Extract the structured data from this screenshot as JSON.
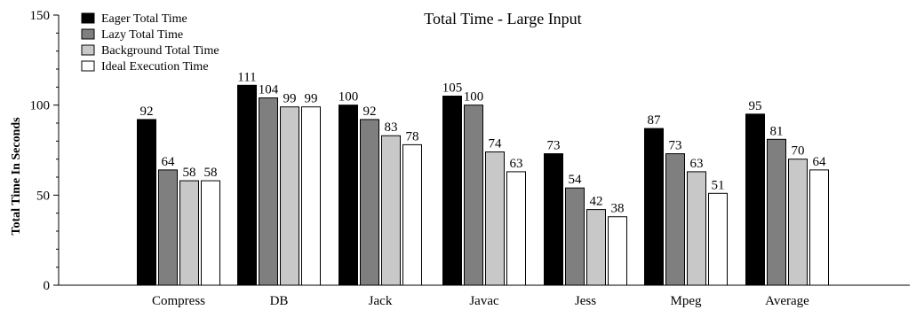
{
  "chart_data": {
    "type": "bar",
    "title": "Total Time - Large Input",
    "xlabel": "",
    "ylabel": "Total Time In Seconds",
    "ylim": [
      0,
      150
    ],
    "yticks": [
      0,
      50,
      100,
      150
    ],
    "grid": false,
    "legend_position": "top-left",
    "categories": [
      "Compress",
      "DB",
      "Jack",
      "Javac",
      "Jess",
      "Mpeg",
      "Average"
    ],
    "series": [
      {
        "name": "Eager Total Time",
        "color": "#000000",
        "values": [
          92,
          111,
          100,
          105,
          73,
          87,
          95
        ]
      },
      {
        "name": "Lazy Total Time",
        "color": "#7f7f7f",
        "values": [
          64,
          104,
          92,
          100,
          54,
          73,
          81
        ]
      },
      {
        "name": "Background Total Time",
        "color": "#c8c8c8",
        "values": [
          58,
          99,
          83,
          74,
          42,
          63,
          70
        ]
      },
      {
        "name": "Ideal Execution Time",
        "color": "#ffffff",
        "values": [
          58,
          99,
          78,
          63,
          38,
          51,
          64
        ]
      }
    ]
  }
}
